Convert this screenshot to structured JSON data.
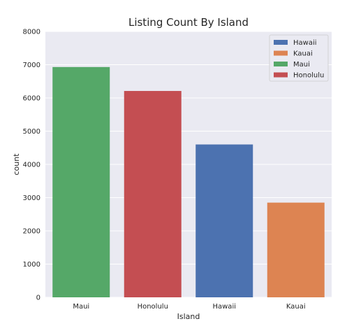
{
  "chart_data": {
    "type": "bar",
    "title": "Listing Count By Island",
    "xlabel": "Island",
    "ylabel": "count",
    "categories": [
      "Maui",
      "Honolulu",
      "Hawaii",
      "Kauai"
    ],
    "values": [
      6930,
      6210,
      4600,
      2850
    ],
    "bar_colors": [
      "#55a868",
      "#c44e52",
      "#4c72b0",
      "#dd8452"
    ],
    "ylim": [
      0,
      8000
    ],
    "yticks": [
      0,
      1000,
      2000,
      3000,
      4000,
      5000,
      6000,
      7000,
      8000
    ],
    "grid": true,
    "legend": {
      "placement": "top-right",
      "entries": [
        {
          "label": "Hawaii",
          "color": "#4c72b0"
        },
        {
          "label": "Kauai",
          "color": "#dd8452"
        },
        {
          "label": "Maui",
          "color": "#55a868"
        },
        {
          "label": "Honolulu",
          "color": "#c44e52"
        }
      ]
    },
    "background": "#eaeaf2",
    "grid_color": "#ffffff"
  }
}
